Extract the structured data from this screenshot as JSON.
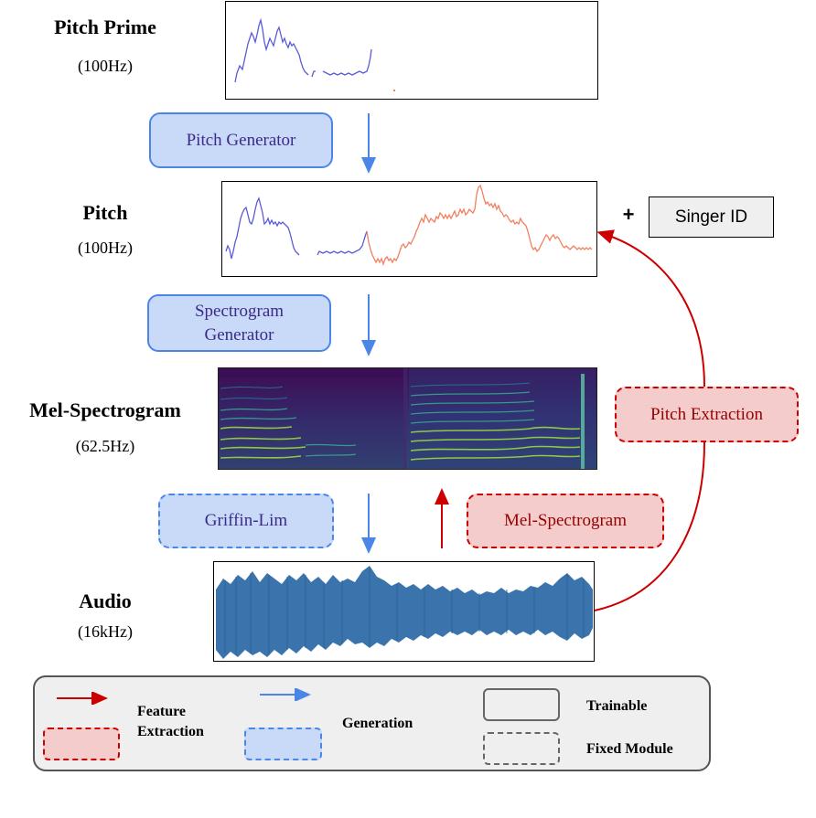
{
  "rows": {
    "pitch_prime": {
      "title": "Pitch Prime",
      "rate": "(100Hz)"
    },
    "pitch": {
      "title": "Pitch",
      "rate": "(100Hz)"
    },
    "mel": {
      "title": "Mel-Spectrogram",
      "rate": "(62.5Hz)"
    },
    "audio": {
      "title": "Audio",
      "rate": "(16kHz)"
    }
  },
  "modules": {
    "pitch_generator": "Pitch Generator",
    "spectrogram_generator_line1": "Spectrogram",
    "spectrogram_generator_line2": "Generator",
    "griffin_lim": "Griffin-Lim",
    "mel_spectrogram": "Mel-Spectrogram",
    "pitch_extraction": "Pitch Extraction"
  },
  "conditioning": {
    "plus": "+",
    "singer_id": "Singer ID"
  },
  "legend": {
    "feature_extraction_line1": "Feature",
    "feature_extraction_line2": "Extraction",
    "generation": "Generation",
    "trainable": "Trainable",
    "fixed_module": "Fixed Module"
  },
  "colors": {
    "generation_blue": "#4a86e8",
    "generation_fill": "#c9daf8",
    "extraction_red": "#cc0000",
    "extraction_fill": "#f4cccc",
    "pitch_prime_line": "#5b5bd6",
    "pitch_generated_line": "#f08060",
    "spectrogram_bg": "#3b0f56",
    "waveform": "#3b74ac"
  },
  "icons": [
    "generation-arrow-icon",
    "extraction-arrow-icon",
    "trainable-box-icon",
    "fixed-module-box-icon"
  ]
}
